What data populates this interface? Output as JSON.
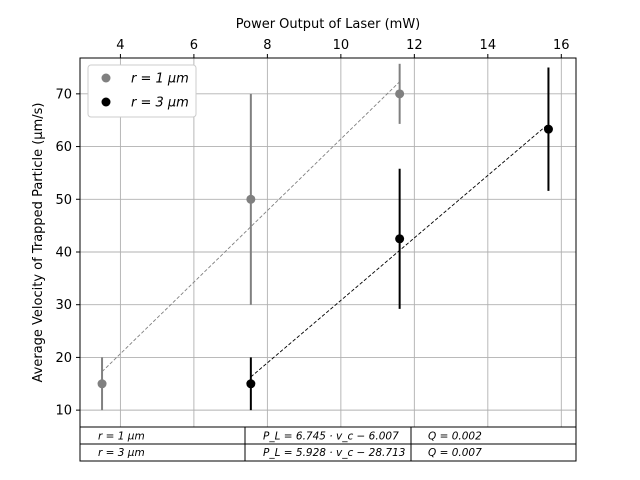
{
  "chart_data": {
    "type": "scatter",
    "title": "",
    "xlabel": "Power Output of Laser (mW)",
    "ylabel": "Average Velocity of Trapped Particle (μm/s)",
    "xlim": [
      2.9,
      16.4
    ],
    "ylim": [
      6.8,
      76.8
    ],
    "x_ticks": [
      4,
      6,
      8,
      10,
      12,
      14,
      16
    ],
    "y_ticks": [
      10,
      20,
      30,
      40,
      50,
      60,
      70
    ],
    "x_axis_position": "top",
    "grid": true,
    "legend_position": "top-left",
    "series": [
      {
        "name": "r = 1 μm",
        "color": "#808080",
        "x": [
          3.5,
          7.55,
          11.6
        ],
        "y": [
          15,
          50,
          70
        ],
        "yerr_low": [
          5,
          20,
          5.7
        ],
        "yerr_high": [
          5,
          20,
          5.7
        ],
        "fit_line": {
          "x": [
            3.5,
            11.6
          ],
          "y": [
            17.3,
            72.3
          ],
          "style": "dashed"
        }
      },
      {
        "name": "r = 3 μm",
        "color": "#000000",
        "x": [
          7.55,
          11.6,
          15.65
        ],
        "y": [
          15,
          42.5,
          63.3
        ],
        "yerr_low": [
          5,
          13.3,
          11.7
        ],
        "yerr_high": [
          5,
          13.3,
          11.7
        ],
        "fit_line": {
          "x": [
            7.55,
            15.65
          ],
          "y": [
            16.3,
            64.3
          ],
          "style": "dashed"
        }
      }
    ],
    "table": {
      "rows": [
        [
          "r = 1 μm",
          "P_L = 6.745 · v_c − 6.007",
          "Q = 0.002"
        ],
        [
          "r = 3 μm",
          "P_L = 5.928 · v_c − 28.713",
          "Q = 0.007"
        ]
      ]
    }
  }
}
